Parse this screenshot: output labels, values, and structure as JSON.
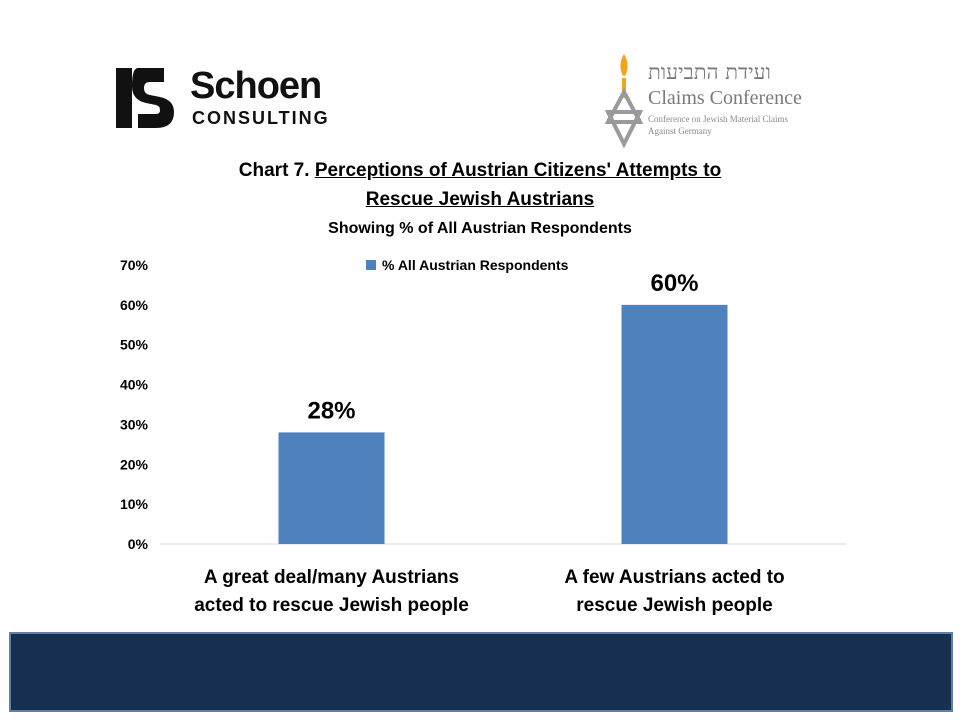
{
  "logos": {
    "schoen": {
      "name": "Schoen",
      "sub": "CONSULTING"
    },
    "claims": {
      "hebrew": "ועידת התביעות",
      "name": "Claims Conference",
      "tag_line1": "Conference on Jewish Material Claims",
      "tag_line2": "Against Germany"
    }
  },
  "title": {
    "prefix": "Chart 7. ",
    "underlined_line1": "Perceptions of Austrian Citizens' Attempts to",
    "underlined_line2": "Rescue Jewish Austrians",
    "subtitle": "Showing % of All Austrian Respondents"
  },
  "chart_data": {
    "type": "bar",
    "categories": [
      [
        "A great deal/many Austrians",
        "acted to rescue Jewish people"
      ],
      [
        "A few Austrians acted to",
        "rescue Jewish people"
      ]
    ],
    "series": [
      {
        "name": "% All Austrian Respondents",
        "values": [
          28,
          60
        ],
        "color": "#4f81bd"
      }
    ],
    "data_labels": [
      "28%",
      "60%"
    ],
    "yticks": [
      "0%",
      "10%",
      "20%",
      "30%",
      "40%",
      "50%",
      "60%",
      "70%"
    ],
    "ylim": [
      0,
      70
    ],
    "legend_position": "top-center",
    "grid": false
  },
  "colors": {
    "bar": "#4f81bd",
    "banner": "#17304f",
    "banner_border": "#5f7fa8"
  }
}
